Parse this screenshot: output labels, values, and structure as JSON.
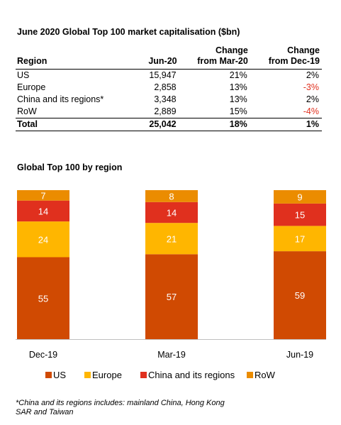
{
  "table": {
    "title": "June 2020 Global Top 100 market capitalisation ($bn)",
    "headers": {
      "region": "Region",
      "jun20": "Jun-20",
      "chg_mar_line1": "Change",
      "chg_mar_line2": "from Mar-20",
      "chg_dec_line1": "Change",
      "chg_dec_line2": "from Dec-19"
    },
    "rows": [
      {
        "region": "US",
        "jun20": "15,947",
        "chg_mar": "21%",
        "chg_dec": "2%"
      },
      {
        "region": "Europe",
        "jun20": "2,858",
        "chg_mar": "13%",
        "chg_dec": "-3%"
      },
      {
        "region": "China and its regions*",
        "jun20": "3,348",
        "chg_mar": "13%",
        "chg_dec": "2%"
      },
      {
        "region": "RoW",
        "jun20": "2,889",
        "chg_mar": "15%",
        "chg_dec": "-4%"
      }
    ],
    "total": {
      "region": "Total",
      "jun20": "25,042",
      "chg_mar": "18%",
      "chg_dec": "1%"
    },
    "negative_color": "#e0301e"
  },
  "chart_data": {
    "type": "bar",
    "stacked": true,
    "title": "Global Top 100 by region",
    "categories": [
      "Dec-19",
      "Mar-19",
      "Jun-19"
    ],
    "series": [
      {
        "name": "US",
        "values": [
          55,
          57,
          59
        ],
        "color": "#d04a02"
      },
      {
        "name": "Europe",
        "values": [
          24,
          21,
          17
        ],
        "color": "#ffb600"
      },
      {
        "name": "China and its regions",
        "values": [
          14,
          14,
          15
        ],
        "color": "#e0301e"
      },
      {
        "name": "RoW",
        "values": [
          7,
          8,
          9
        ],
        "color": "#eb8c00"
      }
    ],
    "ylim": [
      0,
      100
    ],
    "legend_position": "bottom",
    "grid": false
  },
  "footnote": "*China and its regions includes: mainland China, Hong Kong SAR and Taiwan"
}
